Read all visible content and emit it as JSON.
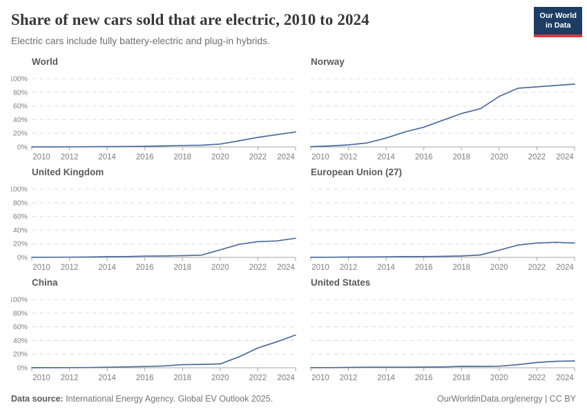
{
  "header": {
    "title": "Share of new cars sold that are electric, 2010 to 2024",
    "subtitle": "Electric cars include fully battery-electric and plug-in hybrids."
  },
  "logo": {
    "line1": "Our World",
    "line2": "in Data",
    "bg_color": "#1d3d63",
    "accent_color": "#e0363b"
  },
  "footer": {
    "source_label": "Data source:",
    "source_text": " International Energy Agency. Global EV Outlook 2025.",
    "citation": "OurWorldinData.org/energy | CC BY"
  },
  "chart_data": {
    "type": "line",
    "title": "Share of new cars sold that are electric, 2010 to 2024",
    "subtitle": "Electric cars include fully battery-electric and plug-in hybrids.",
    "layout": "small-multiples 3 rows x 2 cols",
    "x": [
      2010,
      2011,
      2012,
      2013,
      2014,
      2015,
      2016,
      2017,
      2018,
      2019,
      2020,
      2021,
      2022,
      2023,
      2024
    ],
    "x_ticks": [
      2010,
      2012,
      2014,
      2016,
      2018,
      2020,
      2022,
      2024
    ],
    "ylim": [
      0,
      100
    ],
    "y_ticks": [
      0,
      20,
      40,
      60,
      80,
      100
    ],
    "y_tick_suffix": "%",
    "grid": "dashed horizontal gridlines, y labels on left column only",
    "line_color": "#4c6a9c",
    "grid_color": "#dcdcdc",
    "axis_color": "#a5a5a5",
    "tick_label_color": "#7e7e7e",
    "series": [
      {
        "name": "World",
        "values": [
          0.1,
          0.1,
          0.2,
          0.4,
          0.5,
          0.7,
          1,
          1.5,
          2.2,
          2.5,
          4.2,
          9,
          14,
          18,
          22
        ]
      },
      {
        "name": "Norway",
        "values": [
          0.5,
          1.5,
          3,
          6,
          13,
          22,
          29,
          39,
          49,
          56,
          74,
          86,
          88,
          90,
          92
        ]
      },
      {
        "name": "United Kingdom",
        "values": [
          0.1,
          0.2,
          0.3,
          0.5,
          1,
          1.2,
          1.8,
          2,
          2.5,
          3.2,
          11,
          19,
          23,
          24,
          28
        ]
      },
      {
        "name": "European Union (27)",
        "values": [
          0.1,
          0.2,
          0.5,
          0.7,
          0.8,
          1.2,
          1.2,
          1.5,
          2,
          3.5,
          10.5,
          18,
          21,
          22,
          21
        ]
      },
      {
        "name": "China",
        "values": [
          0.1,
          0.1,
          0.2,
          0.3,
          0.8,
          1.3,
          1.8,
          2.7,
          4.5,
          4.9,
          5.7,
          16,
          29,
          38,
          48
        ]
      },
      {
        "name": "United States",
        "values": [
          0.1,
          0.2,
          0.5,
          0.8,
          0.8,
          0.8,
          1,
          1.2,
          2.1,
          2,
          2.3,
          4.5,
          7.7,
          9.5,
          10
        ]
      }
    ]
  }
}
